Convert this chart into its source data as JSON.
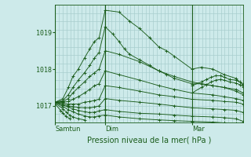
{
  "xlabel": "Pression niveau de la mer( hPa )",
  "bg_color": "#cdeaea",
  "grid_color": "#a8cece",
  "line_color": "#1a5c1a",
  "yticks": [
    1017,
    1018,
    1019
  ],
  "ymin": 1016.55,
  "ymax": 1019.75,
  "xtick_labels": [
    "Samtun",
    "Dim",
    "Mar"
  ],
  "xtick_positions": [
    65,
    130,
    243
  ],
  "xmin": 65,
  "xmax": 310,
  "series": [
    {
      "x": [
        65,
        75,
        82,
        88,
        95,
        103,
        110,
        116,
        122,
        130,
        148,
        162,
        175,
        188,
        200,
        210,
        220,
        243,
        255,
        270,
        285,
        300,
        310
      ],
      "y": [
        1017.1,
        1017.2,
        1017.5,
        1017.8,
        1018.0,
        1018.3,
        1018.55,
        1018.75,
        1018.85,
        1019.6,
        1019.55,
        1019.3,
        1019.1,
        1018.85,
        1018.6,
        1018.5,
        1018.35,
        1018.0,
        1018.05,
        1018.0,
        1017.85,
        1017.75,
        1017.55
      ]
    },
    {
      "x": [
        65,
        75,
        82,
        88,
        95,
        103,
        110,
        116,
        122,
        130,
        140,
        148,
        155,
        162,
        175,
        188,
        200,
        210,
        220,
        243,
        255,
        270,
        285,
        300,
        310
      ],
      "y": [
        1017.1,
        1017.15,
        1017.3,
        1017.5,
        1017.7,
        1017.9,
        1018.1,
        1018.3,
        1018.45,
        1019.15,
        1018.95,
        1018.75,
        1018.55,
        1018.4,
        1018.25,
        1018.1,
        1017.95,
        1017.85,
        1017.75,
        1017.6,
        1017.6,
        1017.55,
        1017.5,
        1017.45,
        1017.35
      ]
    },
    {
      "x": [
        65,
        75,
        82,
        88,
        95,
        103,
        110,
        116,
        122,
        130,
        148,
        175,
        200,
        220,
        243,
        270,
        285,
        300,
        310
      ],
      "y": [
        1017.1,
        1017.12,
        1017.2,
        1017.35,
        1017.5,
        1017.65,
        1017.8,
        1017.9,
        1018.0,
        1018.5,
        1018.4,
        1018.2,
        1017.95,
        1017.8,
        1017.65,
        1017.55,
        1017.5,
        1017.4,
        1017.3
      ]
    },
    {
      "x": [
        65,
        75,
        82,
        88,
        95,
        103,
        110,
        116,
        122,
        130,
        148,
        175,
        200,
        220,
        243,
        270,
        285,
        300,
        310
      ],
      "y": [
        1017.1,
        1017.1,
        1017.12,
        1017.18,
        1017.25,
        1017.35,
        1017.45,
        1017.55,
        1017.6,
        1017.95,
        1017.85,
        1017.7,
        1017.55,
        1017.45,
        1017.35,
        1017.3,
        1017.25,
        1017.2,
        1017.15
      ]
    },
    {
      "x": [
        65,
        75,
        82,
        88,
        95,
        103,
        110,
        116,
        122,
        130,
        148,
        175,
        200,
        220,
        243,
        270,
        285,
        300,
        310
      ],
      "y": [
        1017.1,
        1017.08,
        1017.05,
        1017.05,
        1017.05,
        1017.1,
        1017.12,
        1017.15,
        1017.18,
        1017.55,
        1017.5,
        1017.4,
        1017.3,
        1017.25,
        1017.18,
        1017.15,
        1017.12,
        1017.1,
        1017.05
      ]
    },
    {
      "x": [
        65,
        75,
        82,
        88,
        95,
        103,
        110,
        116,
        122,
        130,
        148,
        175,
        200,
        220,
        243,
        270,
        285,
        300,
        310
      ],
      "y": [
        1017.1,
        1017.05,
        1017.0,
        1016.98,
        1016.96,
        1016.95,
        1016.95,
        1016.97,
        1017.0,
        1017.2,
        1017.15,
        1017.1,
        1017.05,
        1017.0,
        1016.95,
        1016.92,
        1016.9,
        1016.88,
        1016.82
      ]
    },
    {
      "x": [
        65,
        75,
        82,
        88,
        95,
        103,
        110,
        116,
        122,
        130,
        148,
        175,
        200,
        220,
        243,
        270,
        285,
        300,
        310
      ],
      "y": [
        1017.1,
        1017.02,
        1016.97,
        1016.92,
        1016.88,
        1016.84,
        1016.82,
        1016.83,
        1016.86,
        1016.9,
        1016.85,
        1016.8,
        1016.78,
        1016.75,
        1016.72,
        1016.7,
        1016.68,
        1016.65,
        1016.58
      ]
    },
    {
      "x": [
        65,
        75,
        82,
        88,
        95,
        103,
        110,
        116,
        122,
        130,
        148,
        175,
        200,
        220,
        243,
        270,
        285,
        300,
        310
      ],
      "y": [
        1017.1,
        1016.98,
        1016.9,
        1016.84,
        1016.78,
        1016.73,
        1016.7,
        1016.7,
        1016.73,
        1016.75,
        1016.7,
        1016.65,
        1016.62,
        1016.6,
        1016.58,
        1016.56,
        1016.54,
        1016.52,
        1016.45
      ]
    },
    {
      "x": [
        65,
        75,
        80,
        84,
        88,
        95,
        103
      ],
      "y": [
        1017.08,
        1016.92,
        1016.82,
        1016.75,
        1016.7,
        1016.65,
        1016.62
      ]
    },
    {
      "x": [
        65,
        72,
        75,
        79,
        84
      ],
      "y": [
        1017.05,
        1016.88,
        1016.8,
        1016.72,
        1016.65
      ]
    },
    {
      "x": [
        243,
        255,
        262,
        268,
        274,
        280,
        285,
        292,
        300,
        305,
        310
      ],
      "y": [
        1017.55,
        1017.65,
        1017.72,
        1017.78,
        1017.82,
        1017.82,
        1017.78,
        1017.72,
        1017.7,
        1017.65,
        1017.6
      ]
    },
    {
      "x": [
        243,
        255,
        262,
        268,
        274,
        280,
        285,
        292,
        300,
        305,
        310
      ],
      "y": [
        1017.35,
        1017.5,
        1017.58,
        1017.65,
        1017.7,
        1017.72,
        1017.7,
        1017.65,
        1017.62,
        1017.58,
        1017.52
      ]
    }
  ],
  "vlines": [
    65,
    130,
    243
  ],
  "n_vgrid": 50,
  "n_hgrid": 14
}
